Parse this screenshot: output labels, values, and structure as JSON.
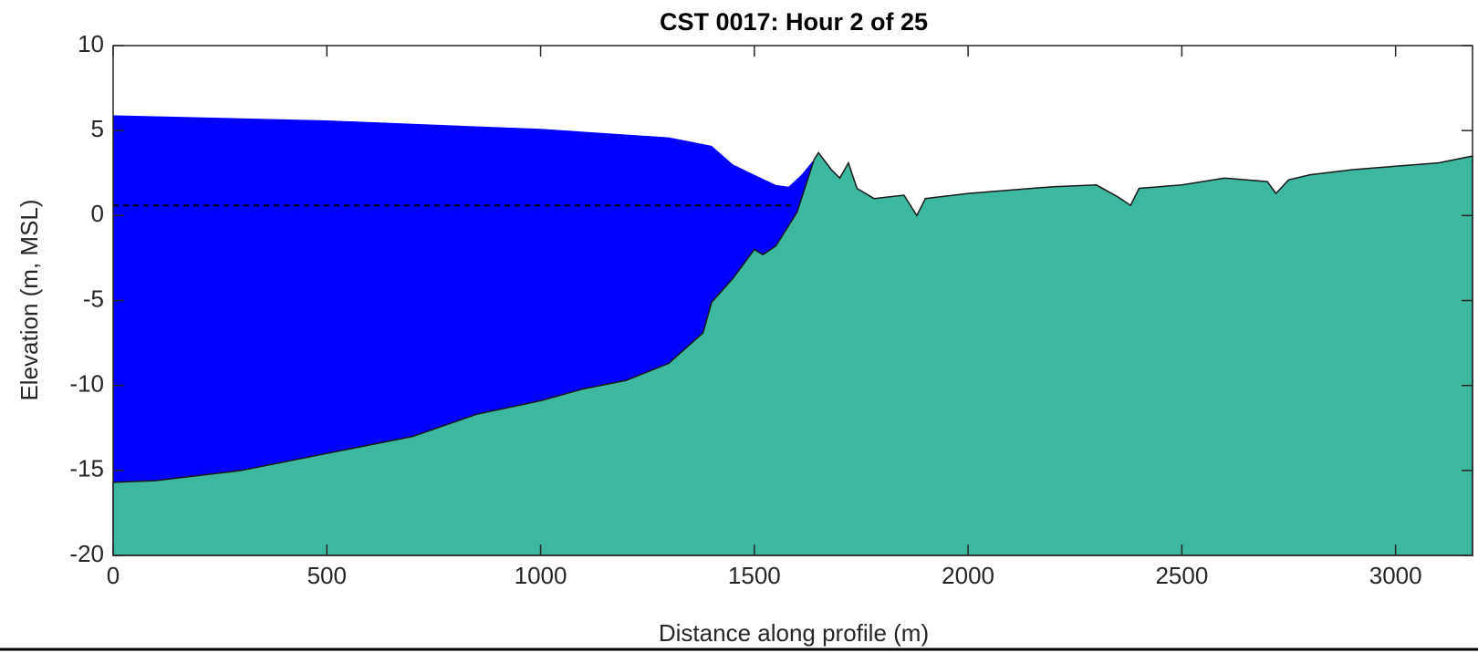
{
  "chart_data": {
    "type": "area",
    "title": "CST 0017: Hour 2 of 25",
    "xlabel": "Distance along profile (m)",
    "ylabel": "Elevation (m, MSL)",
    "xlim": [
      0,
      3180
    ],
    "ylim": [
      -20,
      10
    ],
    "xticks": [
      0,
      500,
      1000,
      1500,
      2000,
      2500,
      3000
    ],
    "yticks": [
      -20,
      -15,
      -10,
      -5,
      0,
      5,
      10
    ],
    "grid": false,
    "series": [
      {
        "color": "#0000ff",
        "fill": true,
        "dash": false,
        "outline": false,
        "x": [
          0,
          500,
          1000,
          1300,
          1400,
          1450,
          1500,
          1550,
          1580,
          1610,
          1640
        ],
        "values": [
          5.9,
          5.6,
          5.1,
          4.6,
          4.1,
          3.0,
          2.4,
          1.8,
          1.7,
          2.4,
          3.3
        ]
      },
      {
        "color": "#3cb89e",
        "fill": true,
        "dash": false,
        "outline": true,
        "x": [
          0,
          100,
          300,
          500,
          700,
          850,
          1000,
          1100,
          1200,
          1300,
          1380,
          1400,
          1450,
          1500,
          1520,
          1550,
          1600,
          1640,
          1650,
          1680,
          1700,
          1720,
          1740,
          1780,
          1850,
          1880,
          1900,
          2000,
          2100,
          2200,
          2300,
          2350,
          2380,
          2400,
          2500,
          2600,
          2700,
          2720,
          2750,
          2800,
          2900,
          3000,
          3100,
          3180
        ],
        "values": [
          -15.7,
          -15.6,
          -15.0,
          -14.0,
          -13.0,
          -11.7,
          -10.9,
          -10.2,
          -9.7,
          -8.7,
          -6.9,
          -5.1,
          -3.7,
          -2.0,
          -2.3,
          -1.8,
          0.2,
          3.3,
          3.7,
          2.7,
          2.2,
          3.1,
          1.6,
          1.0,
          1.2,
          0.0,
          1.0,
          1.3,
          1.5,
          1.7,
          1.8,
          1.1,
          0.6,
          1.6,
          1.8,
          2.2,
          2.0,
          1.3,
          2.1,
          2.4,
          2.7,
          2.9,
          3.1,
          3.5
        ]
      },
      {
        "color": "#000000",
        "fill": false,
        "dash": true,
        "outline": false,
        "x": [
          0,
          1590
        ],
        "values": [
          0.6,
          0.6
        ]
      }
    ]
  }
}
